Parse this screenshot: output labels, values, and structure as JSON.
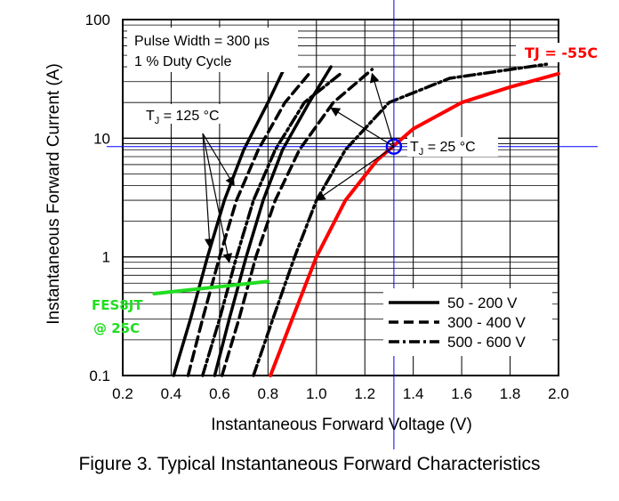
{
  "chart_data": {
    "type": "line",
    "title": "Figure 3. Typical Instantaneous Forward Characteristics",
    "xlabel": "Instantaneous Forward Voltage (V)",
    "ylabel": "Instantaneous Forward Current (A)",
    "xlim": [
      0.2,
      2.0
    ],
    "ylim": [
      0.1,
      100
    ],
    "yscale": "log",
    "grid": true,
    "x_ticks": [
      "0.2",
      "0.4",
      "0.6",
      "0.8",
      "1.0",
      "1.2",
      "1.4",
      "1.6",
      "1.8",
      "2.0"
    ],
    "y_ticks": [
      "0.1",
      "1",
      "10",
      "100"
    ],
    "annotations": {
      "conditions_line1": "Pulse Width = 300 µs",
      "conditions_line2": "1 % Duty Cycle",
      "tj125": "T_J = 125 °C",
      "tj125_main": "T",
      "tj125_sub": "J",
      "tj125_rest": " = 125 °C",
      "tj25_main": "T",
      "tj25_sub": "J",
      "tj25_rest": " = 25 °C",
      "red_label": "TJ = -55C",
      "green_label_line1": "FES8JT",
      "green_label_line2": "@ 25C"
    },
    "legend": {
      "placement": "bottom-right",
      "entries": [
        {
          "label": "50 - 200 V",
          "style": "solid"
        },
        {
          "label": "300 - 400 V",
          "style": "dashed"
        },
        {
          "label": "500 - 600 V",
          "style": "dash-dot"
        }
      ]
    },
    "series": [
      {
        "style": "solid",
        "condition": "125C",
        "points": [
          [
            0.41,
            0.1
          ],
          [
            0.48,
            0.3
          ],
          [
            0.55,
            1.0
          ],
          [
            0.62,
            3.0
          ],
          [
            0.7,
            8.0
          ],
          [
            0.8,
            20
          ],
          [
            0.87,
            40
          ]
        ]
      },
      {
        "style": "solid",
        "condition": "25C",
        "points": [
          [
            0.58,
            0.1
          ],
          [
            0.64,
            0.3
          ],
          [
            0.71,
            1.0
          ],
          [
            0.78,
            3.0
          ],
          [
            0.86,
            8.0
          ],
          [
            0.97,
            20
          ],
          [
            1.06,
            40
          ]
        ]
      },
      {
        "style": "dashed",
        "condition": "125C",
        "points": [
          [
            0.47,
            0.1
          ],
          [
            0.53,
            0.3
          ],
          [
            0.6,
            1.0
          ],
          [
            0.67,
            3.0
          ],
          [
            0.76,
            8.0
          ],
          [
            0.87,
            20
          ],
          [
            0.97,
            35
          ]
        ]
      },
      {
        "style": "dashed",
        "condition": "25C",
        "points": [
          [
            0.61,
            0.1
          ],
          [
            0.68,
            0.3
          ],
          [
            0.75,
            1.0
          ],
          [
            0.83,
            3.0
          ],
          [
            0.93,
            8.0
          ],
          [
            1.07,
            20
          ],
          [
            1.23,
            38
          ]
        ]
      },
      {
        "style": "dash-dot",
        "condition": "125C",
        "points": [
          [
            0.53,
            0.1
          ],
          [
            0.6,
            0.3
          ],
          [
            0.67,
            1.0
          ],
          [
            0.74,
            3.0
          ],
          [
            0.83,
            8.0
          ],
          [
            0.95,
            20
          ],
          [
            1.1,
            35
          ]
        ]
      },
      {
        "style": "dash-dot",
        "condition": "25C",
        "points": [
          [
            0.74,
            0.1
          ],
          [
            0.82,
            0.3
          ],
          [
            0.91,
            1.0
          ],
          [
            1.0,
            3.0
          ],
          [
            1.12,
            8.0
          ],
          [
            1.3,
            20
          ],
          [
            1.55,
            32
          ],
          [
            1.95,
            42
          ]
        ]
      },
      {
        "style": "solid",
        "name": "TJ = -55C",
        "color": "#ff0000",
        "points": [
          [
            0.81,
            0.1
          ],
          [
            0.9,
            0.3
          ],
          [
            1.0,
            1.0
          ],
          [
            1.12,
            3.0
          ],
          [
            1.25,
            6.5
          ],
          [
            1.4,
            12
          ],
          [
            1.6,
            20
          ],
          [
            1.8,
            27
          ],
          [
            2.0,
            35
          ]
        ]
      },
      {
        "style": "solid",
        "name": "FES8JT @ 25C",
        "color": "#22dd22",
        "points": [
          [
            0.33,
            0.49
          ],
          [
            0.8,
            0.62
          ]
        ]
      }
    ],
    "marker": {
      "x": 1.32,
      "y": 8.5,
      "color": "#0000ff"
    },
    "colors": {
      "crosshair": "#0000ff",
      "tj_minus55": "#ff0000",
      "fes8jt": "#22dd22"
    }
  }
}
